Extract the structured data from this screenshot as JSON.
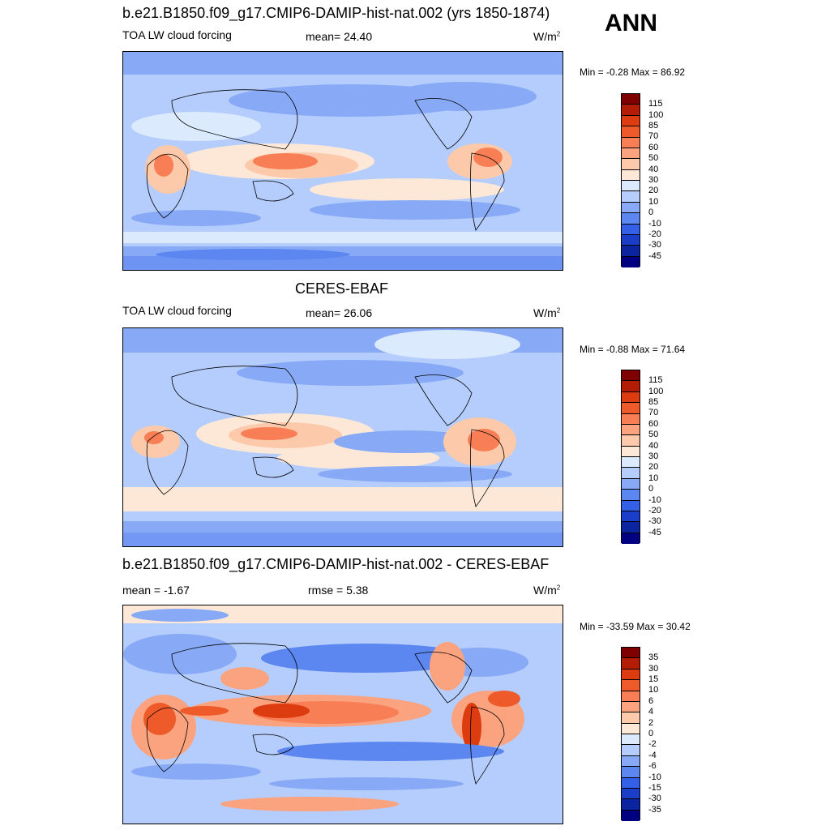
{
  "season": "ANN",
  "panels": [
    {
      "title": "b.e21.B1850.f09_g17.CMIP6-DAMIP-hist-nat.002 (yrs 1850-1874)",
      "left_label": "TOA LW cloud forcing",
      "center_label": "mean=  24.40",
      "units": "W/m",
      "units_sup": "2",
      "minmax": "Min =  -0.28 Max =  86.92"
    },
    {
      "title": "CERES-EBAF",
      "left_label": "TOA LW cloud forcing",
      "center_label": "mean=  26.06",
      "units": "W/m",
      "units_sup": "2",
      "minmax": "Min =  -0.88 Max =  71.64"
    },
    {
      "title": "b.e21.B1850.f09_g17.CMIP6-DAMIP-hist-nat.002 - CERES-EBAF",
      "left_label": "mean =  -1.67",
      "center_label": "rmse =   5.38",
      "units": "W/m",
      "units_sup": "2",
      "minmax": "Min = -33.59 Max =  30.42"
    }
  ],
  "colorbar_abs": {
    "labels": [
      "115",
      "100",
      "85",
      "70",
      "60",
      "50",
      "40",
      "30",
      "20",
      "10",
      "0",
      "-10",
      "-20",
      "-30",
      "-45"
    ],
    "colors": [
      "#7f0000",
      "#b31c05",
      "#dd3c11",
      "#ee5a2a",
      "#f87f55",
      "#fba37f",
      "#fdc9ab",
      "#fde8d8",
      "#dbeafd",
      "#b4cdfc",
      "#88aaf6",
      "#5c86f0",
      "#3360e6",
      "#1a3ec8",
      "#0b25a0",
      "#000080"
    ]
  },
  "colorbar_diff": {
    "labels": [
      "35",
      "30",
      "15",
      "10",
      "6",
      "4",
      "2",
      "0",
      "-2",
      "-4",
      "-6",
      "-10",
      "-15",
      "-30",
      "-35"
    ],
    "colors": [
      "#7f0000",
      "#b31c05",
      "#dd3c11",
      "#ee5a2a",
      "#f87f55",
      "#fba37f",
      "#fdc9ab",
      "#fde8d8",
      "#dbeafd",
      "#b4cdfc",
      "#88aaf6",
      "#5c86f0",
      "#3360e6",
      "#1a3ec8",
      "#0b25a0",
      "#000080"
    ]
  }
}
